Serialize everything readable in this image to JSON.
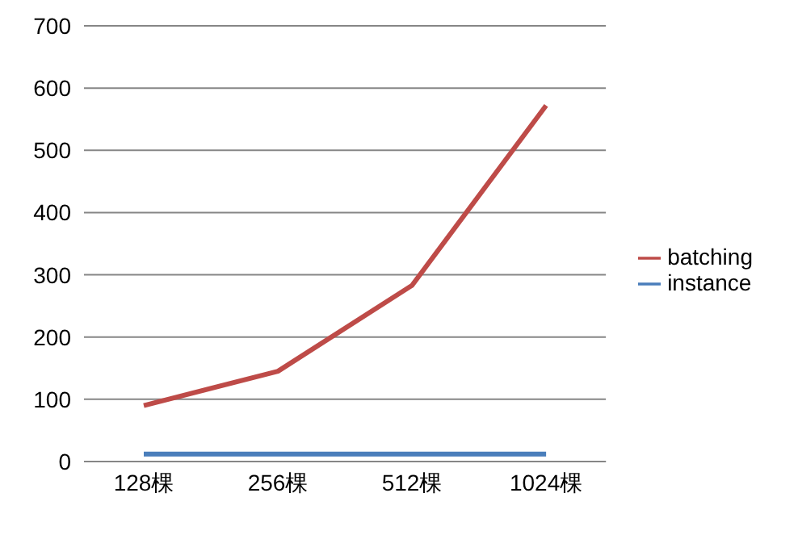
{
  "chart_data": {
    "type": "line",
    "categories": [
      "128棵",
      "256棵",
      "512棵",
      "1024棵"
    ],
    "series": [
      {
        "name": "instance",
        "color": "#4a7ebb",
        "values": [
          12,
          12,
          12,
          12
        ]
      },
      {
        "name": "batching",
        "color": "#be4b48",
        "values": [
          90,
          145,
          283,
          572
        ]
      }
    ],
    "ylim": [
      0,
      700
    ],
    "yticks": [
      0,
      100,
      200,
      300,
      400,
      500,
      600,
      700
    ],
    "grid": "y",
    "legend": "right",
    "marker": "none",
    "line_style": "solid"
  }
}
